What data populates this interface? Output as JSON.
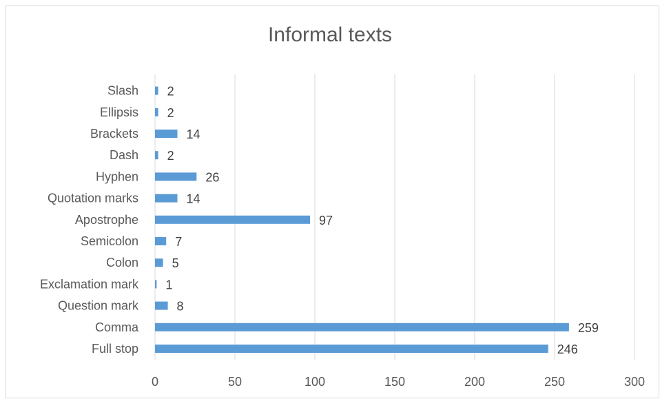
{
  "chart_data": {
    "type": "bar",
    "orientation": "horizontal",
    "title": "Informal texts",
    "xlabel": "",
    "ylabel": "",
    "categories": [
      "Full stop",
      "Comma",
      "Question mark",
      "Exclamation mark",
      "Colon",
      "Semicolon",
      "Apostrophe",
      "Quotation marks",
      "Hyphen",
      "Dash",
      "Brackets",
      "Ellipsis",
      "Slash"
    ],
    "values": [
      246,
      259,
      8,
      1,
      5,
      7,
      97,
      14,
      26,
      2,
      14,
      2,
      2
    ],
    "xlim": [
      0,
      300
    ],
    "x_ticks": [
      0,
      50,
      100,
      150,
      200,
      250,
      300
    ],
    "grid": "vertical",
    "data_labels": true,
    "bar_color": "#5b9bd5",
    "gridline_color": "#d9d9d9"
  }
}
